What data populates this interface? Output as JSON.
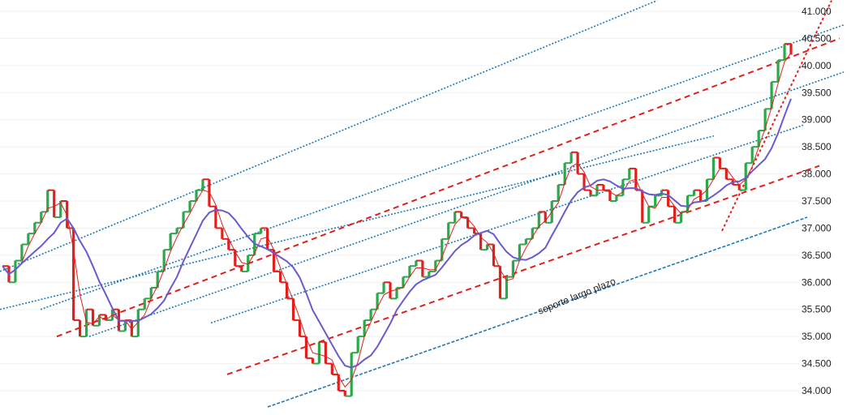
{
  "chart_data": {
    "type": "candlestick",
    "ylim": [
      33700,
      41200
    ],
    "y_ticks": [
      "34.000",
      "34.500",
      "35.000",
      "35.500",
      "36.000",
      "36.500",
      "37.000",
      "37.500",
      "38.000",
      "38.500",
      "39.000",
      "39.500",
      "40.000",
      "40.500",
      "41.000"
    ],
    "y_tick_values": [
      34000,
      34500,
      35000,
      35500,
      36000,
      36500,
      37000,
      37500,
      38000,
      38500,
      39000,
      39500,
      40000,
      40500,
      41000
    ],
    "grid": true,
    "colors": {
      "up": "#2aa84a",
      "down": "#e0201c",
      "ma_fast": "#e0201c",
      "ma_slow": "#6a5acd",
      "channel_blue": "#1f77b4",
      "channel_red": "#e0201c"
    },
    "annotations": [
      {
        "text": "soporte  largo plazo"
      }
    ],
    "ohlc_closes": [
      36300,
      36000,
      36400,
      36700,
      36900,
      37100,
      37300,
      37700,
      37200,
      37500,
      37000,
      35300,
      35000,
      35500,
      35200,
      35400,
      35300,
      35500,
      35100,
      35300,
      35000,
      35500,
      35700,
      35900,
      36200,
      36600,
      36900,
      37000,
      37300,
      37500,
      37700,
      37900,
      37400,
      37000,
      36800,
      36600,
      36300,
      36200,
      36500,
      36900,
      37000,
      36600,
      36200,
      36000,
      35700,
      35300,
      35000,
      34600,
      34500,
      34900,
      34500,
      34300,
      34000,
      33900,
      34700,
      35000,
      35300,
      35500,
      35800,
      36000,
      35700,
      35900,
      36100,
      36300,
      36400,
      36100,
      36200,
      36400,
      36800,
      37100,
      37300,
      37200,
      37000,
      36900,
      36600,
      36700,
      36300,
      35700,
      36100,
      36400,
      36700,
      36800,
      37000,
      37300,
      37100,
      37500,
      37800,
      38200,
      38400,
      38000,
      37700,
      37600,
      37800,
      37700,
      37500,
      37600,
      37900,
      38100,
      37700,
      37100,
      37400,
      37600,
      37700,
      37400,
      37100,
      37300,
      37600,
      37700,
      37500,
      37900,
      38300,
      38100,
      37900,
      37800,
      37700,
      38200,
      38500,
      38800,
      39200,
      39700,
      40100,
      40400,
      40200
    ]
  },
  "lines": [
    {
      "name": "blue-channel-1",
      "points": [
        [
          0,
          36200
        ],
        [
          810,
          41200
        ]
      ]
    },
    {
      "name": "blue-channel-2",
      "points": [
        [
          50,
          35500
        ],
        [
          1040,
          40750
        ]
      ]
    },
    {
      "name": "blue-channel-3",
      "points": [
        [
          110,
          35000
        ],
        [
          1040,
          39880
        ]
      ]
    },
    {
      "name": "blue-channel-4",
      "points": [
        [
          0,
          35500
        ],
        [
          880,
          38700
        ]
      ]
    },
    {
      "name": "blue-channel-5",
      "points": [
        [
          260,
          35250
        ],
        [
          990,
          38900
        ]
      ]
    },
    {
      "name": "blue-support",
      "points": [
        [
          330,
          33700
        ],
        [
          995,
          37200
        ]
      ]
    },
    {
      "name": "red-channel-1",
      "points": [
        [
          70,
          35000
        ],
        [
          1035,
          40500
        ]
      ]
    },
    {
      "name": "red-channel-2",
      "points": [
        [
          280,
          34300
        ],
        [
          1010,
          38150
        ]
      ]
    },
    {
      "name": "red-trend-steep",
      "points": [
        [
          890,
          36950
        ],
        [
          1025,
          41200
        ]
      ]
    }
  ]
}
